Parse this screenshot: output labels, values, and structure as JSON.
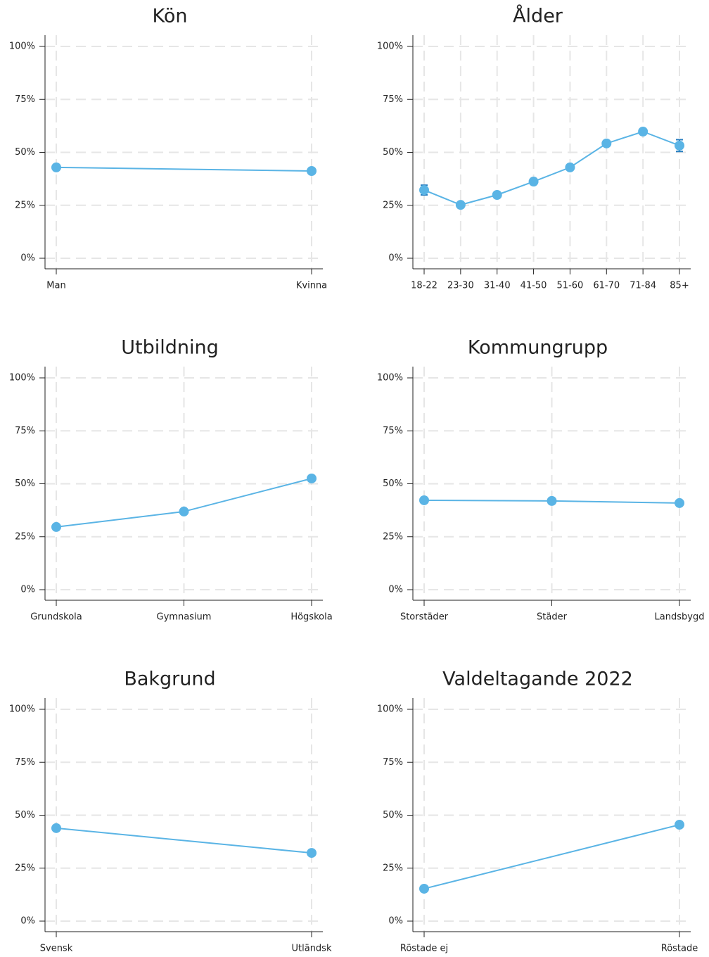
{
  "chart_data": [
    {
      "type": "line",
      "title": "Kön",
      "categories": [
        "Man",
        "Kvinna"
      ],
      "series": [
        {
          "name": null,
          "color": "#5ab4e5",
          "values": [
            42.9,
            41.2
          ]
        }
      ],
      "ylim": [
        0,
        100
      ],
      "yticks": [
        {
          "value": 0,
          "label": "0%"
        },
        {
          "value": 25,
          "label": "25%"
        },
        {
          "value": 50,
          "label": "50%"
        },
        {
          "value": 75,
          "label": "75%"
        },
        {
          "value": 100,
          "label": "100%"
        }
      ],
      "grid": true
    },
    {
      "type": "line",
      "title": "Ålder",
      "categories": [
        "18-22",
        "23-30",
        "31-40",
        "41-50",
        "51-60",
        "61-70",
        "71-84",
        "85+"
      ],
      "series": [
        {
          "name": null,
          "color": "#5ab4e5",
          "values": [
            32.2,
            25.2,
            29.9,
            36.2,
            42.9,
            54.2,
            59.8,
            53.2
          ],
          "errors": [
            2.3,
            0.8,
            0.8,
            0.8,
            0.8,
            1.0,
            1.2,
            2.8
          ],
          "error_color": "#2a7fc0"
        }
      ],
      "ylim": [
        0,
        100
      ],
      "yticks": [
        {
          "value": 0,
          "label": "0%"
        },
        {
          "value": 25,
          "label": "25%"
        },
        {
          "value": 50,
          "label": "50%"
        },
        {
          "value": 75,
          "label": "75%"
        },
        {
          "value": 100,
          "label": "100%"
        }
      ],
      "grid": true
    },
    {
      "type": "line",
      "title": "Utbildning",
      "categories": [
        "Grundskola",
        "Gymnasium",
        "Högskola"
      ],
      "series": [
        {
          "name": null,
          "color": "#5ab4e5",
          "values": [
            29.6,
            36.9,
            52.5
          ]
        }
      ],
      "ylim": [
        0,
        100
      ],
      "yticks": [
        {
          "value": 0,
          "label": "0%"
        },
        {
          "value": 25,
          "label": "25%"
        },
        {
          "value": 50,
          "label": "50%"
        },
        {
          "value": 75,
          "label": "75%"
        },
        {
          "value": 100,
          "label": "100%"
        }
      ],
      "grid": true
    },
    {
      "type": "line",
      "title": "Kommungrupp",
      "categories": [
        "Storstäder",
        "Städer",
        "Landsbygd"
      ],
      "series": [
        {
          "name": null,
          "color": "#5ab4e5",
          "values": [
            42.2,
            41.9,
            40.9
          ]
        }
      ],
      "ylim": [
        0,
        100
      ],
      "yticks": [
        {
          "value": 0,
          "label": "0%"
        },
        {
          "value": 25,
          "label": "25%"
        },
        {
          "value": 50,
          "label": "50%"
        },
        {
          "value": 75,
          "label": "75%"
        },
        {
          "value": 100,
          "label": "100%"
        }
      ],
      "grid": true
    },
    {
      "type": "line",
      "title": "Bakgrund",
      "categories": [
        "Svensk",
        "Utländsk"
      ],
      "series": [
        {
          "name": null,
          "color": "#5ab4e5",
          "values": [
            43.9,
            32.2
          ]
        }
      ],
      "ylim": [
        0,
        100
      ],
      "yticks": [
        {
          "value": 0,
          "label": "0%"
        },
        {
          "value": 25,
          "label": "25%"
        },
        {
          "value": 50,
          "label": "50%"
        },
        {
          "value": 75,
          "label": "75%"
        },
        {
          "value": 100,
          "label": "100%"
        }
      ],
      "grid": true
    },
    {
      "type": "line",
      "title": "Valdeltagande 2022",
      "categories": [
        "Röstade ej",
        "Röstade"
      ],
      "series": [
        {
          "name": null,
          "color": "#5ab4e5",
          "values": [
            15.3,
            45.5
          ]
        }
      ],
      "ylim": [
        0,
        100
      ],
      "yticks": [
        {
          "value": 0,
          "label": "0%"
        },
        {
          "value": 25,
          "label": "25%"
        },
        {
          "value": 50,
          "label": "50%"
        },
        {
          "value": 75,
          "label": "75%"
        },
        {
          "value": 100,
          "label": "100%"
        }
      ],
      "grid": true
    }
  ]
}
